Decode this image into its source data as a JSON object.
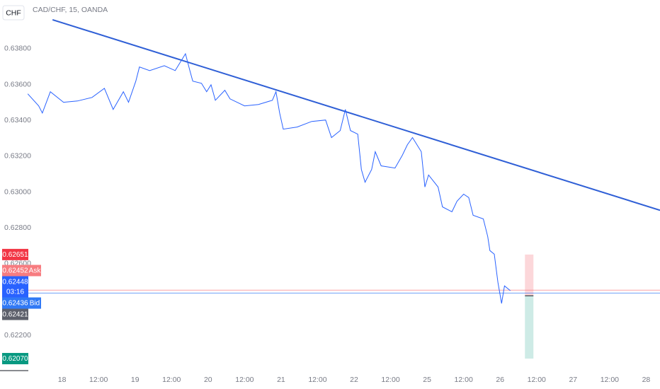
{
  "chart_data": {
    "type": "line",
    "symbol": "CHF",
    "title": "CAD/CHF, 15, OANDA",
    "xlim": [
      -0.85,
      8.19
    ],
    "ylim": [
      0.62003,
      0.64072
    ],
    "xticks": [
      {
        "value": 0,
        "label": "18"
      },
      {
        "value": 0.5,
        "label": "12:00"
      },
      {
        "value": 1,
        "label": "19"
      },
      {
        "value": 1.5,
        "label": "12:00"
      },
      {
        "value": 2,
        "label": "20"
      },
      {
        "value": 2.5,
        "label": "12:00"
      },
      {
        "value": 3,
        "label": "21"
      },
      {
        "value": 3.5,
        "label": "12:00"
      },
      {
        "value": 4,
        "label": "22"
      },
      {
        "value": 4.5,
        "label": "12:00"
      },
      {
        "value": 5,
        "label": "25"
      },
      {
        "value": 5.5,
        "label": "12:00"
      },
      {
        "value": 6,
        "label": "26"
      },
      {
        "value": 6.5,
        "label": "12:00"
      },
      {
        "value": 7,
        "label": "27"
      },
      {
        "value": 7.5,
        "label": "12:00"
      },
      {
        "value": 8,
        "label": "28"
      }
    ],
    "yticks": [
      {
        "value": 0.638,
        "label": "0.63800"
      },
      {
        "value": 0.636,
        "label": "0.63600"
      },
      {
        "value": 0.634,
        "label": "0.63400"
      },
      {
        "value": 0.632,
        "label": "0.63200"
      },
      {
        "value": 0.63,
        "label": "0.63000"
      },
      {
        "value": 0.628,
        "label": "0.62800"
      },
      {
        "value": 0.626,
        "label": "0.62600"
      },
      {
        "value": 0.622,
        "label": "0.62200"
      }
    ],
    "series": [
      {
        "color": "#2962ff",
        "x": [
          -0.47,
          -0.32,
          -0.27,
          -0.16,
          0.02,
          0.21,
          0.41,
          0.58,
          0.7,
          0.84,
          0.91,
          1.01,
          1.06,
          1.2,
          1.4,
          1.55,
          1.69,
          1.75,
          1.79,
          1.91,
          1.98,
          2.04,
          2.1,
          2.23,
          2.3,
          2.5,
          2.69,
          2.88,
          2.93,
          2.98,
          3.03,
          3.22,
          3.42,
          3.61,
          3.69,
          3.81,
          3.88,
          3.95,
          4.05,
          4.1,
          4.15,
          4.24,
          4.29,
          4.37,
          4.56,
          4.66,
          4.73,
          4.8,
          4.92,
          4.97,
          5.02,
          5.15,
          5.21,
          5.34,
          5.41,
          5.5,
          5.57,
          5.63,
          5.77,
          5.83,
          5.86,
          5.92,
          5.97,
          6.02,
          6.06,
          6.14
        ],
        "values": [
          0.63548,
          0.63481,
          0.63441,
          0.6356,
          0.63501,
          0.63508,
          0.63528,
          0.63579,
          0.63461,
          0.6356,
          0.63501,
          0.63619,
          0.63698,
          0.63678,
          0.63705,
          0.63678,
          0.63772,
          0.63678,
          0.63619,
          0.63607,
          0.6356,
          0.63599,
          0.63512,
          0.63568,
          0.6352,
          0.63481,
          0.63489,
          0.63512,
          0.6356,
          0.63441,
          0.63351,
          0.63363,
          0.63394,
          0.63402,
          0.63304,
          0.63343,
          0.63461,
          0.63343,
          0.63323,
          0.63126,
          0.63055,
          0.63126,
          0.63225,
          0.63146,
          0.63134,
          0.63205,
          0.63264,
          0.63304,
          0.63225,
          0.63028,
          0.63095,
          0.63028,
          0.62917,
          0.6289,
          0.62949,
          0.62988,
          0.62969,
          0.6287,
          0.6285,
          0.62752,
          0.62673,
          0.62653,
          0.62496,
          0.62378,
          0.62476,
          0.62449
        ]
      }
    ],
    "trendline": {
      "color": "#2f5fd6",
      "x": [
        -0.13,
        8.19
      ],
      "values": [
        0.63962,
        0.62898
      ]
    },
    "price_tags": [
      {
        "value": 0.62651,
        "label": "0.62651",
        "color": "#f23645"
      },
      {
        "value": 0.62452,
        "label": "0.62452",
        "color": "#f77c80",
        "tag": "Ask"
      },
      {
        "value": 0.62448,
        "label": "0.62448",
        "color": "#2962ff",
        "countdown": "03:16"
      },
      {
        "value": 0.62436,
        "label": "0.62436",
        "color": "#3179f5",
        "tag": "Bid"
      },
      {
        "value": 0.62421,
        "label": "0.62421",
        "color": "#5d606b"
      },
      {
        "value": 0.6207,
        "label": "0.62070",
        "color": "#089981"
      }
    ]
  }
}
